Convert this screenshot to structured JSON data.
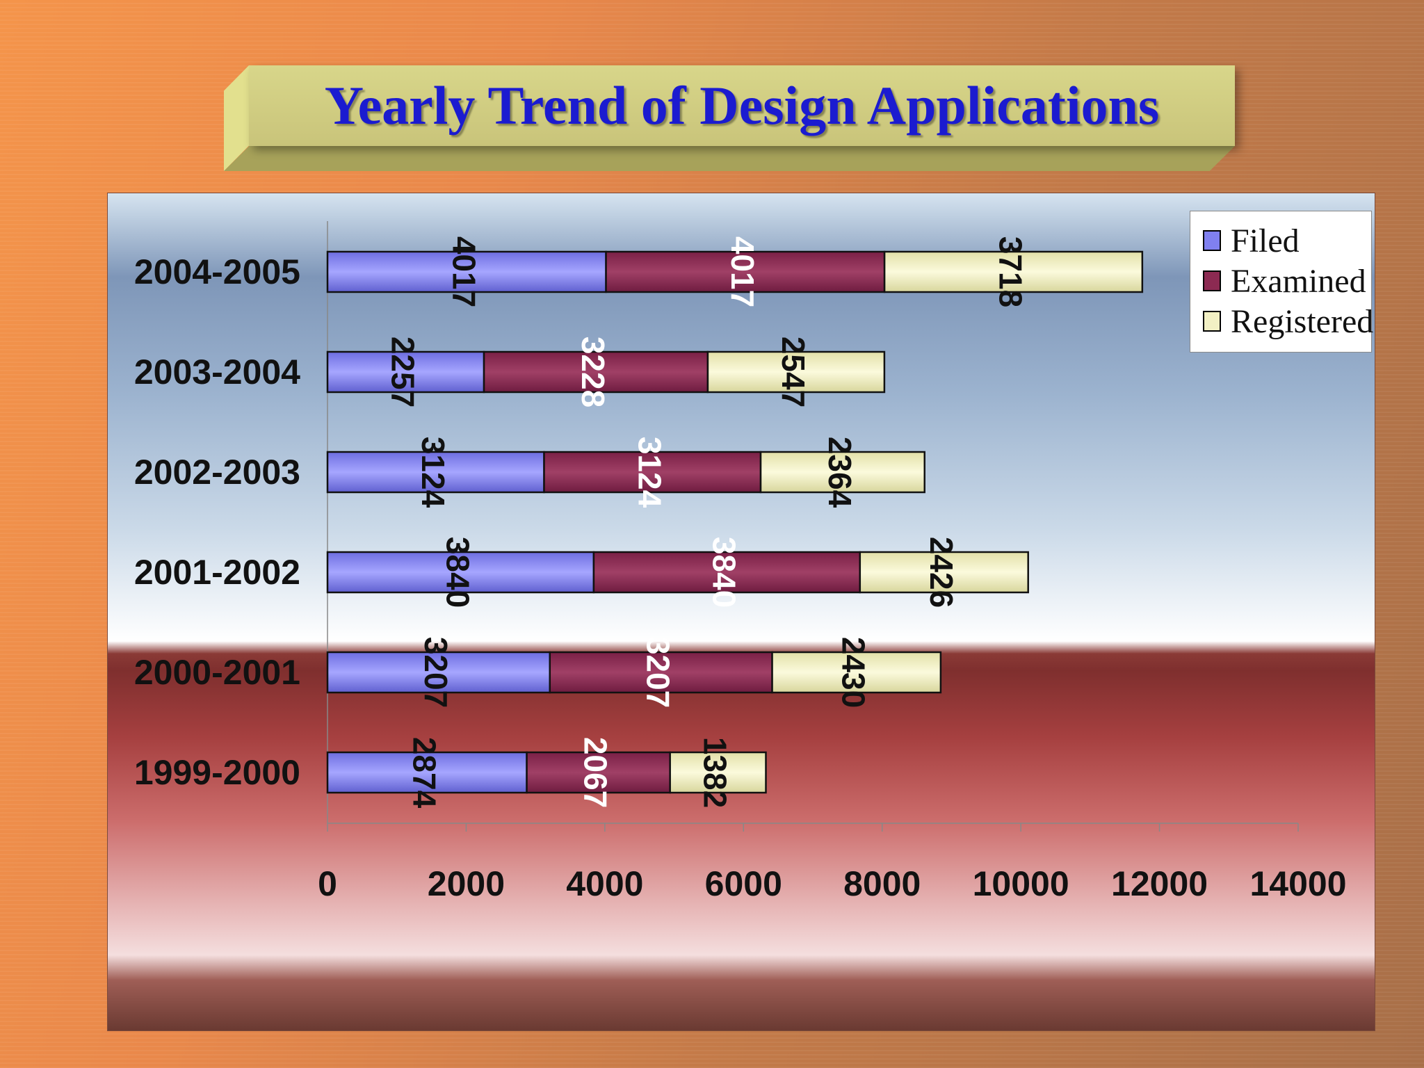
{
  "slide": {
    "title": "Yearly Trend of Design Applications"
  },
  "colors": {
    "filed": "#8080f0",
    "examined": "#8c2a52",
    "registered": "#f2f0c4"
  },
  "chart_data": {
    "type": "bar",
    "orientation": "horizontal",
    "stacked": true,
    "title": "Yearly Trend of Design Applications",
    "categories": [
      "2004-2005",
      "2003-2004",
      "2002-2003",
      "2001-2002",
      "2000-2001",
      "1999-2000"
    ],
    "series": [
      {
        "name": "Filed",
        "values": [
          4017,
          2257,
          3124,
          3840,
          3207,
          2874
        ]
      },
      {
        "name": "Examined",
        "values": [
          4017,
          3228,
          3124,
          3840,
          3207,
          2067
        ]
      },
      {
        "name": "Registered",
        "values": [
          3718,
          2547,
          2364,
          2426,
          2430,
          1382
        ]
      }
    ],
    "xlim": [
      0,
      14000
    ],
    "xticks": [
      "0",
      "2000",
      "4000",
      "6000",
      "8000",
      "10000",
      "12000",
      "14000"
    ],
    "grid": false,
    "legend_position": "top-right"
  }
}
